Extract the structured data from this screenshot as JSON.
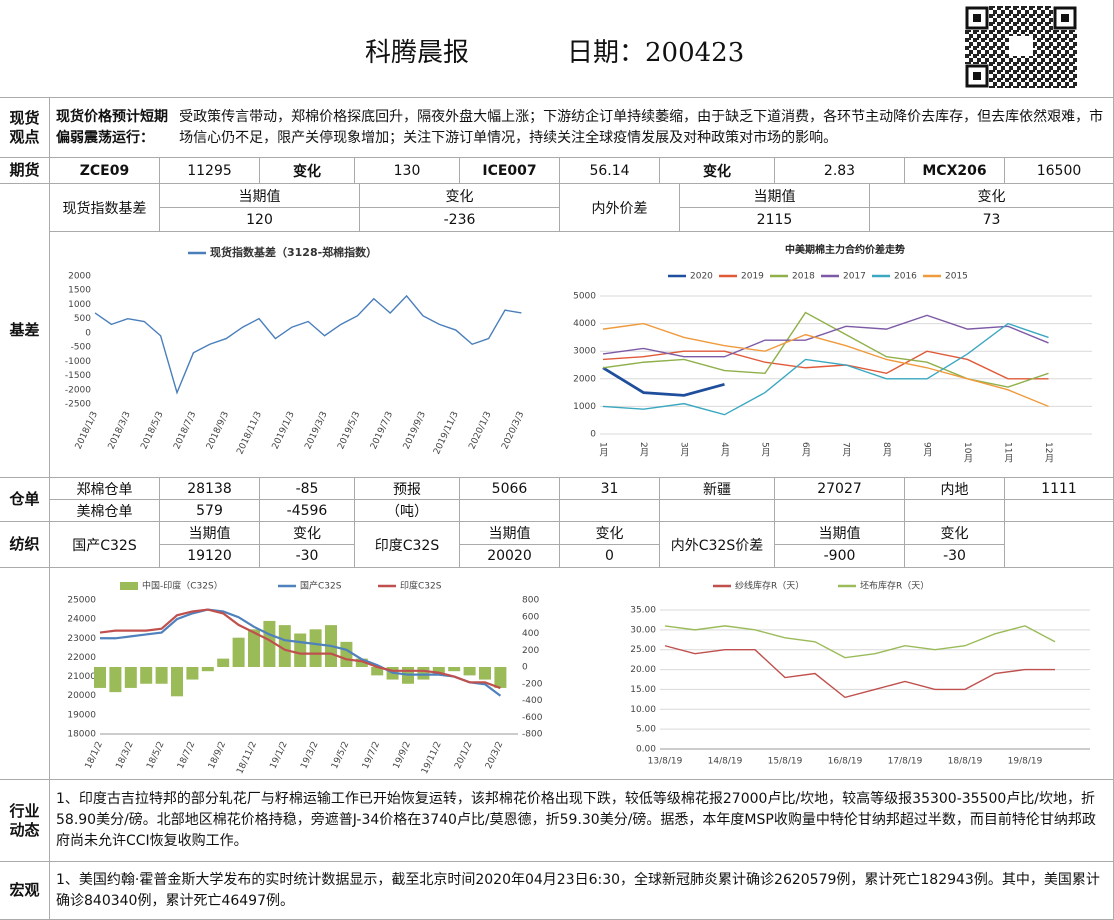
{
  "header": {
    "title": "科腾晨报",
    "date": "日期：200423"
  },
  "spot_view": {
    "label": "现货观点",
    "headline": "现货价格预计短期偏弱震荡运行：",
    "text": "受政策传言带动，郑棉价格探底回升，隔夜外盘大幅上涨；下游纺企订单持续萎缩，由于缺乏下道消费，各环节主动降价去库存，但去库依然艰难，市场信心仍不足，限产关停现象增加；关注下游订单情况，持续关注全球疫情发展及对种政策对市场的影响。"
  },
  "futures": {
    "label": "期货",
    "cells": [
      "ZCE09",
      11295,
      "变化",
      130,
      "ICE007",
      56.14,
      "变化",
      2.83,
      "MCX206",
      16500
    ]
  },
  "basis": {
    "label": "基差",
    "name": "现货指数基差",
    "h1": "当期值",
    "h2": "变化",
    "v1": 120,
    "v2": -236,
    "name2": "内外价差",
    "h3": "当期值",
    "h4": "变化",
    "v3": 2115,
    "v4": 73
  },
  "warehouse": {
    "label": "仓单",
    "rows": [
      [
        "郑棉仓单",
        28138,
        -85,
        "预报",
        5066,
        31,
        "新疆",
        27027,
        "内地",
        1111
      ],
      [
        "美棉仓单",
        579,
        -4596,
        "（吨）"
      ]
    ]
  },
  "textile": {
    "label": "纺织",
    "name1": "国产C32S",
    "h1": "当期值",
    "h2": "变化",
    "v1": 19120,
    "v2": -30,
    "name2": "印度C32S",
    "h3": "当期值",
    "h4": "变化",
    "v3": 20020,
    "v4": 0,
    "name3": "内外C32S价差",
    "h5": "当期值",
    "h6": "变化",
    "v5": -900,
    "v6": -30
  },
  "industry": {
    "label": "行业动态",
    "text": "1、印度古吉拉特邦的部分轧花厂与籽棉运输工作已开始恢复运转，该邦棉花价格出现下跌，较低等级棉花报27000卢比/坎地，较高等级报35300-35500卢比/坎地，折58.90美分/磅。北部地区棉花价格持稳，旁遮普J-34价格在3740卢比/莫恩德，折59.30美分/磅。据悉，本年度MSP收购量中特伦甘纳邦超过半数，而目前特伦甘纳邦政府尚未允许CCI恢复收购工作。"
  },
  "macro": {
    "label": "宏观",
    "text": "1、美国约翰·霍普金斯大学发布的实时统计数据显示，截至北京时间2020年04月23日6:30，全球新冠肺炎累计确诊2620579例，累计死亡182943例。其中，美国累计确诊840340例，累计死亡46497例。"
  },
  "chart_data": [
    {
      "type": "line",
      "categories": [
        "2018/1/3",
        null,
        "2018/3/3",
        null,
        "2018/5/3",
        null,
        "2018/7/3",
        null,
        "2018/9/3",
        null,
        "2018/11/3",
        null,
        "2019/1/3",
        null,
        "2019/3/3",
        null,
        "2019/5/3",
        null,
        "2019/7/3",
        null,
        "2019/9/3",
        null,
        "2019/11/3",
        null,
        "2020/1/3",
        null,
        "2020/3/3"
      ],
      "series": [
        {
          "name": "现货指数基差（3128-郑棉指数）",
          "color": "#4a7ebb",
          "values": [
            700,
            300,
            500,
            400,
            -100,
            -2100,
            -700,
            -400,
            -200,
            200,
            500,
            -200,
            200,
            400,
            -100,
            300,
            600,
            1200,
            700,
            1300,
            600,
            300,
            100,
            -400,
            -200,
            800,
            700
          ]
        }
      ],
      "ylim": [
        -2500,
        2000
      ],
      "yticks": [
        -2500,
        -2000,
        -1500,
        -1000,
        -500,
        0,
        500,
        1000,
        1500,
        2000
      ],
      "grid": false
    },
    {
      "type": "line",
      "title": "中美期棉主力合约价差走势",
      "categories": [
        "1月",
        "2月",
        "3月",
        "4月",
        "5月",
        "6月",
        "7月",
        "8月",
        "9月",
        "10月",
        "11月",
        "12月"
      ],
      "series": [
        {
          "name": "2020",
          "color": "#1f4e9c",
          "values": [
            2400,
            1500,
            1400,
            1800,
            null,
            null,
            null,
            null,
            null,
            null,
            null,
            null
          ]
        },
        {
          "name": "2019",
          "color": "#e05a3a",
          "values": [
            2700,
            2800,
            3000,
            3000,
            2600,
            2400,
            2500,
            2200,
            3000,
            2700,
            2000,
            2000
          ]
        },
        {
          "name": "2018",
          "color": "#8fb04a",
          "values": [
            2400,
            2600,
            2700,
            2300,
            2200,
            4400,
            3600,
            2800,
            2600,
            2000,
            1700,
            2200
          ]
        },
        {
          "name": "2017",
          "color": "#7d5aa6",
          "values": [
            2900,
            3100,
            2800,
            2800,
            3400,
            3400,
            3900,
            3800,
            4300,
            3800,
            3900,
            3300
          ]
        },
        {
          "name": "2016",
          "color": "#3aa8c0",
          "values": [
            1000,
            900,
            1100,
            700,
            1500,
            2700,
            2500,
            2000,
            2000,
            2900,
            4000,
            3500
          ]
        },
        {
          "name": "2015",
          "color": "#f09a3e",
          "values": [
            3800,
            4000,
            3500,
            3200,
            3000,
            3600,
            3200,
            2700,
            2400,
            2000,
            1600,
            1000
          ]
        }
      ],
      "ylim": [
        0,
        5000
      ],
      "yticks": [
        0,
        1000,
        2000,
        3000,
        4000,
        5000
      ],
      "grid": true
    },
    {
      "type": "combo",
      "categories": [
        "18/1/2",
        null,
        "18/3/2",
        null,
        "18/5/2",
        null,
        "18/7/2",
        null,
        "18/9/2",
        null,
        "18/11/2",
        null,
        "19/1/2",
        null,
        "19/3/2",
        null,
        "19/5/2",
        null,
        "19/7/2",
        null,
        "19/9/2",
        null,
        "19/11/2",
        null,
        "20/1/2",
        null,
        "20/3/2"
      ],
      "series": [
        {
          "name": "中国-印度（C32S）",
          "type": "bar",
          "axis": "y2",
          "color": "#9bbb59",
          "values": [
            -250,
            -300,
            -250,
            -200,
            -200,
            -350,
            -150,
            -50,
            100,
            350,
            450,
            550,
            500,
            400,
            450,
            500,
            300,
            100,
            -100,
            -150,
            -200,
            -150,
            -100,
            -50,
            -100,
            -150,
            -250
          ]
        },
        {
          "name": "国产C32S",
          "color": "#4f81bd",
          "values": [
            23000,
            23000,
            23100,
            23200,
            23300,
            24000,
            24300,
            24500,
            24400,
            24100,
            23600,
            23200,
            22900,
            22800,
            22700,
            22600,
            22400,
            21900,
            21600,
            21200,
            21100,
            21100,
            21100,
            21000,
            20700,
            20600,
            20000
          ]
        },
        {
          "name": "印度C32S",
          "color": "#c0504d",
          "values": [
            23300,
            23400,
            23400,
            23400,
            23500,
            24200,
            24400,
            24500,
            24300,
            23700,
            23300,
            22900,
            22400,
            22200,
            22200,
            22200,
            21900,
            21800,
            21500,
            21300,
            21300,
            21300,
            21200,
            21000,
            20700,
            20700,
            20400
          ]
        }
      ],
      "ylim": [
        18000,
        25000
      ],
      "yticks": [
        18000,
        19000,
        20000,
        21000,
        22000,
        23000,
        24000,
        25000
      ],
      "y2lim": [
        -800,
        800
      ],
      "y2ticks": [
        -800,
        -600,
        -400,
        -200,
        0,
        200,
        400,
        600,
        800
      ],
      "grid": false
    },
    {
      "type": "line",
      "categories": [
        "13/8/19",
        null,
        "14/8/19",
        null,
        "15/8/19",
        null,
        "16/8/19",
        null,
        "17/8/19",
        null,
        "18/8/19",
        null,
        "19/8/19",
        null
      ],
      "series": [
        {
          "name": "纱线库存R（天）",
          "color": "#c0504d",
          "values": [
            26,
            24,
            25,
            25,
            18,
            19,
            13,
            15,
            17,
            15,
            15,
            19,
            20,
            20
          ]
        },
        {
          "name": "坯布库存R（天）",
          "color": "#9bbb59",
          "values": [
            31,
            30,
            31,
            30,
            28,
            27,
            23,
            24,
            26,
            25,
            26,
            29,
            31,
            27
          ]
        }
      ],
      "ylim": [
        0,
        35
      ],
      "yticks": [
        {
          "value": 0,
          "label": "0.00"
        },
        {
          "value": 5,
          "label": "5.00"
        },
        {
          "value": 10,
          "label": "10.00"
        },
        {
          "value": 15,
          "label": "15.00"
        },
        {
          "value": 20,
          "label": "20.00"
        },
        {
          "value": 25,
          "label": "25.00"
        },
        {
          "value": 30,
          "label": "30.00"
        },
        {
          "value": 35,
          "label": "35.00"
        }
      ],
      "grid": true
    }
  ]
}
